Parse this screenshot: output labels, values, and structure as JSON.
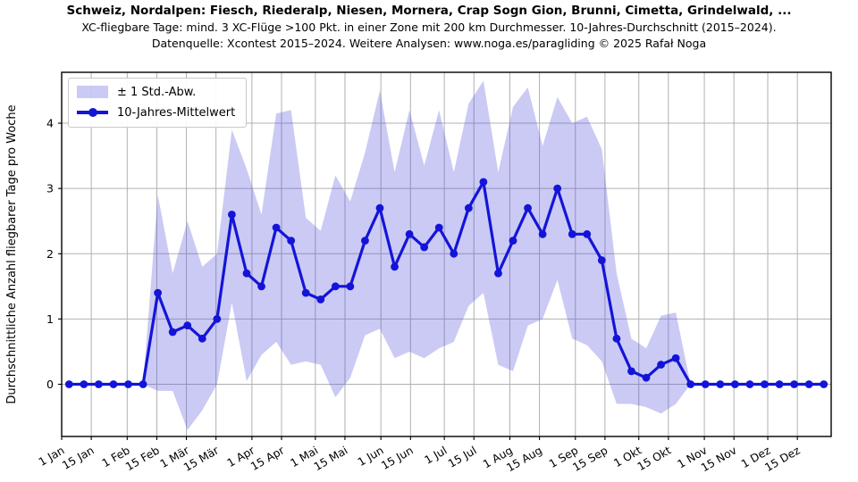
{
  "header": {
    "title": "Schweiz, Nordalpen: Fiesch, Riederalp, Niesen, Mornera, Crap Sogn Gion, Brunni, Cimetta, Grindelwald, ...",
    "subtitle": "XC-fliegbare Tage: mind. 3 XC-Flüge >100 Pkt. in einer Zone mit 200 km Durchmesser. 10-Jahres-Durchschnitt (2015–2024).",
    "credit": "Datenquelle: Xcontest 2015–2024. Weitere Analysen: www.noga.es/paragliding © 2025 Rafał Noga"
  },
  "colors": {
    "line": "#1414d8",
    "band": "#5050dd",
    "band_opacity": 0.3,
    "grid": "#b0b0b0",
    "spine": "#000000",
    "text": "#000000"
  },
  "chart_data": {
    "type": "line",
    "title": "Schweiz, Nordalpen: Fiesch, Riederalp, Niesen, Mornera, Crap Sogn Gion, Brunni, Cimetta, Grindelwald, ...",
    "subtitle": "XC-fliegbare Tage: mind. 3 XC-Flüge >100 Pkt. in einer Zone mit 200 km Durchmesser. 10-Jahres-Durchschnitt (2015–2024).",
    "credit": "Datenquelle: Xcontest 2015–2024. Weitere Analysen: www.noga.es/paragliding © 2025 Rafał Noga",
    "xlabel": "",
    "ylabel": "Durchschnittliche Anzahl fliegbarer Tage pro Woche",
    "grid": true,
    "legend_position": "upper left",
    "legend_entries": [
      "± 1 Std.-Abw.",
      "10-Jahres-Mittelwert"
    ],
    "y_ticks": [
      0,
      1,
      2,
      3,
      4
    ],
    "ylim": [
      -0.8,
      4.78
    ],
    "xlim_days": [
      0,
      364
    ],
    "x_ticklabels": [
      "1 Jan",
      "15 Jan",
      "1 Feb",
      "15 Feb",
      "1 Mär",
      "15 Mär",
      "1 Apr",
      "15 Apr",
      "1 Mai",
      "15 Mai",
      "1 Jun",
      "15 Jun",
      "1 Jul",
      "15 Jul",
      "1 Aug",
      "15 Aug",
      "1 Sep",
      "15 Sep",
      "1 Okt",
      "15 Okt",
      "1 Nov",
      "15 Nov",
      "1 Dez",
      "15 Dez"
    ],
    "x_tick_days": [
      0,
      14,
      31,
      45,
      59,
      73,
      90,
      104,
      120,
      134,
      151,
      165,
      181,
      195,
      212,
      226,
      243,
      257,
      273,
      287,
      304,
      318,
      334,
      348
    ],
    "x_days": [
      3.5,
      10.5,
      17.5,
      24.5,
      31.5,
      38.5,
      45.5,
      52.5,
      59.5,
      66.5,
      73.5,
      80.5,
      87.5,
      94.5,
      101.5,
      108.5,
      115.5,
      122.5,
      129.5,
      136.5,
      143.5,
      150.5,
      157.5,
      164.5,
      171.5,
      178.5,
      185.5,
      192.5,
      199.5,
      206.5,
      213.5,
      220.5,
      227.5,
      234.5,
      241.5,
      248.5,
      255.5,
      262.5,
      269.5,
      276.5,
      283.5,
      290.5,
      297.5,
      304.5,
      311.5,
      318.5,
      325.5,
      332.5,
      339.5,
      346.5,
      353.5,
      360.5
    ],
    "series": [
      {
        "name": "10-Jahres-Mittelwert",
        "values": [
          0,
          0,
          0,
          0,
          0,
          0,
          1.4,
          0.8,
          0.9,
          0.7,
          1.0,
          2.6,
          1.7,
          1.5,
          2.4,
          2.2,
          1.4,
          1.3,
          1.5,
          1.5,
          2.2,
          2.7,
          1.8,
          2.3,
          2.1,
          2.4,
          2.0,
          2.7,
          3.1,
          1.7,
          2.2,
          2.7,
          2.3,
          3.0,
          2.3,
          2.3,
          1.9,
          0.7,
          0.2,
          0.1,
          0.3,
          0.4,
          0,
          0,
          0,
          0,
          0,
          0,
          0,
          0,
          0,
          0
        ]
      },
      {
        "name": "± 1 Std.-Abw. (obere Grenze)",
        "values": [
          0,
          0,
          0,
          0,
          0,
          0,
          2.9,
          1.7,
          2.5,
          1.8,
          2.0,
          3.9,
          3.3,
          2.6,
          4.15,
          4.2,
          2.55,
          2.35,
          3.2,
          2.8,
          3.55,
          4.5,
          3.25,
          4.2,
          3.35,
          4.2,
          3.25,
          4.3,
          4.65,
          3.25,
          4.25,
          4.55,
          3.65,
          4.4,
          4.0,
          4.1,
          3.6,
          1.7,
          0.7,
          0.55,
          1.05,
          1.1,
          0,
          0,
          0,
          0,
          0,
          0,
          0,
          0,
          0,
          0
        ]
      },
      {
        "name": "± 1 Std.-Abw. (untere Grenze)",
        "values": [
          0,
          0,
          0,
          0,
          0,
          0,
          -0.1,
          -0.1,
          -0.7,
          -0.4,
          0.0,
          1.25,
          0.05,
          0.45,
          0.65,
          0.3,
          0.35,
          0.3,
          -0.2,
          0.1,
          0.75,
          0.85,
          0.4,
          0.5,
          0.4,
          0.55,
          0.65,
          1.2,
          1.4,
          0.3,
          0.2,
          0.9,
          1.0,
          1.6,
          0.7,
          0.6,
          0.35,
          -0.3,
          -0.3,
          -0.35,
          -0.45,
          -0.3,
          0,
          0,
          0,
          0,
          0,
          0,
          0,
          0,
          0,
          0
        ]
      }
    ]
  }
}
